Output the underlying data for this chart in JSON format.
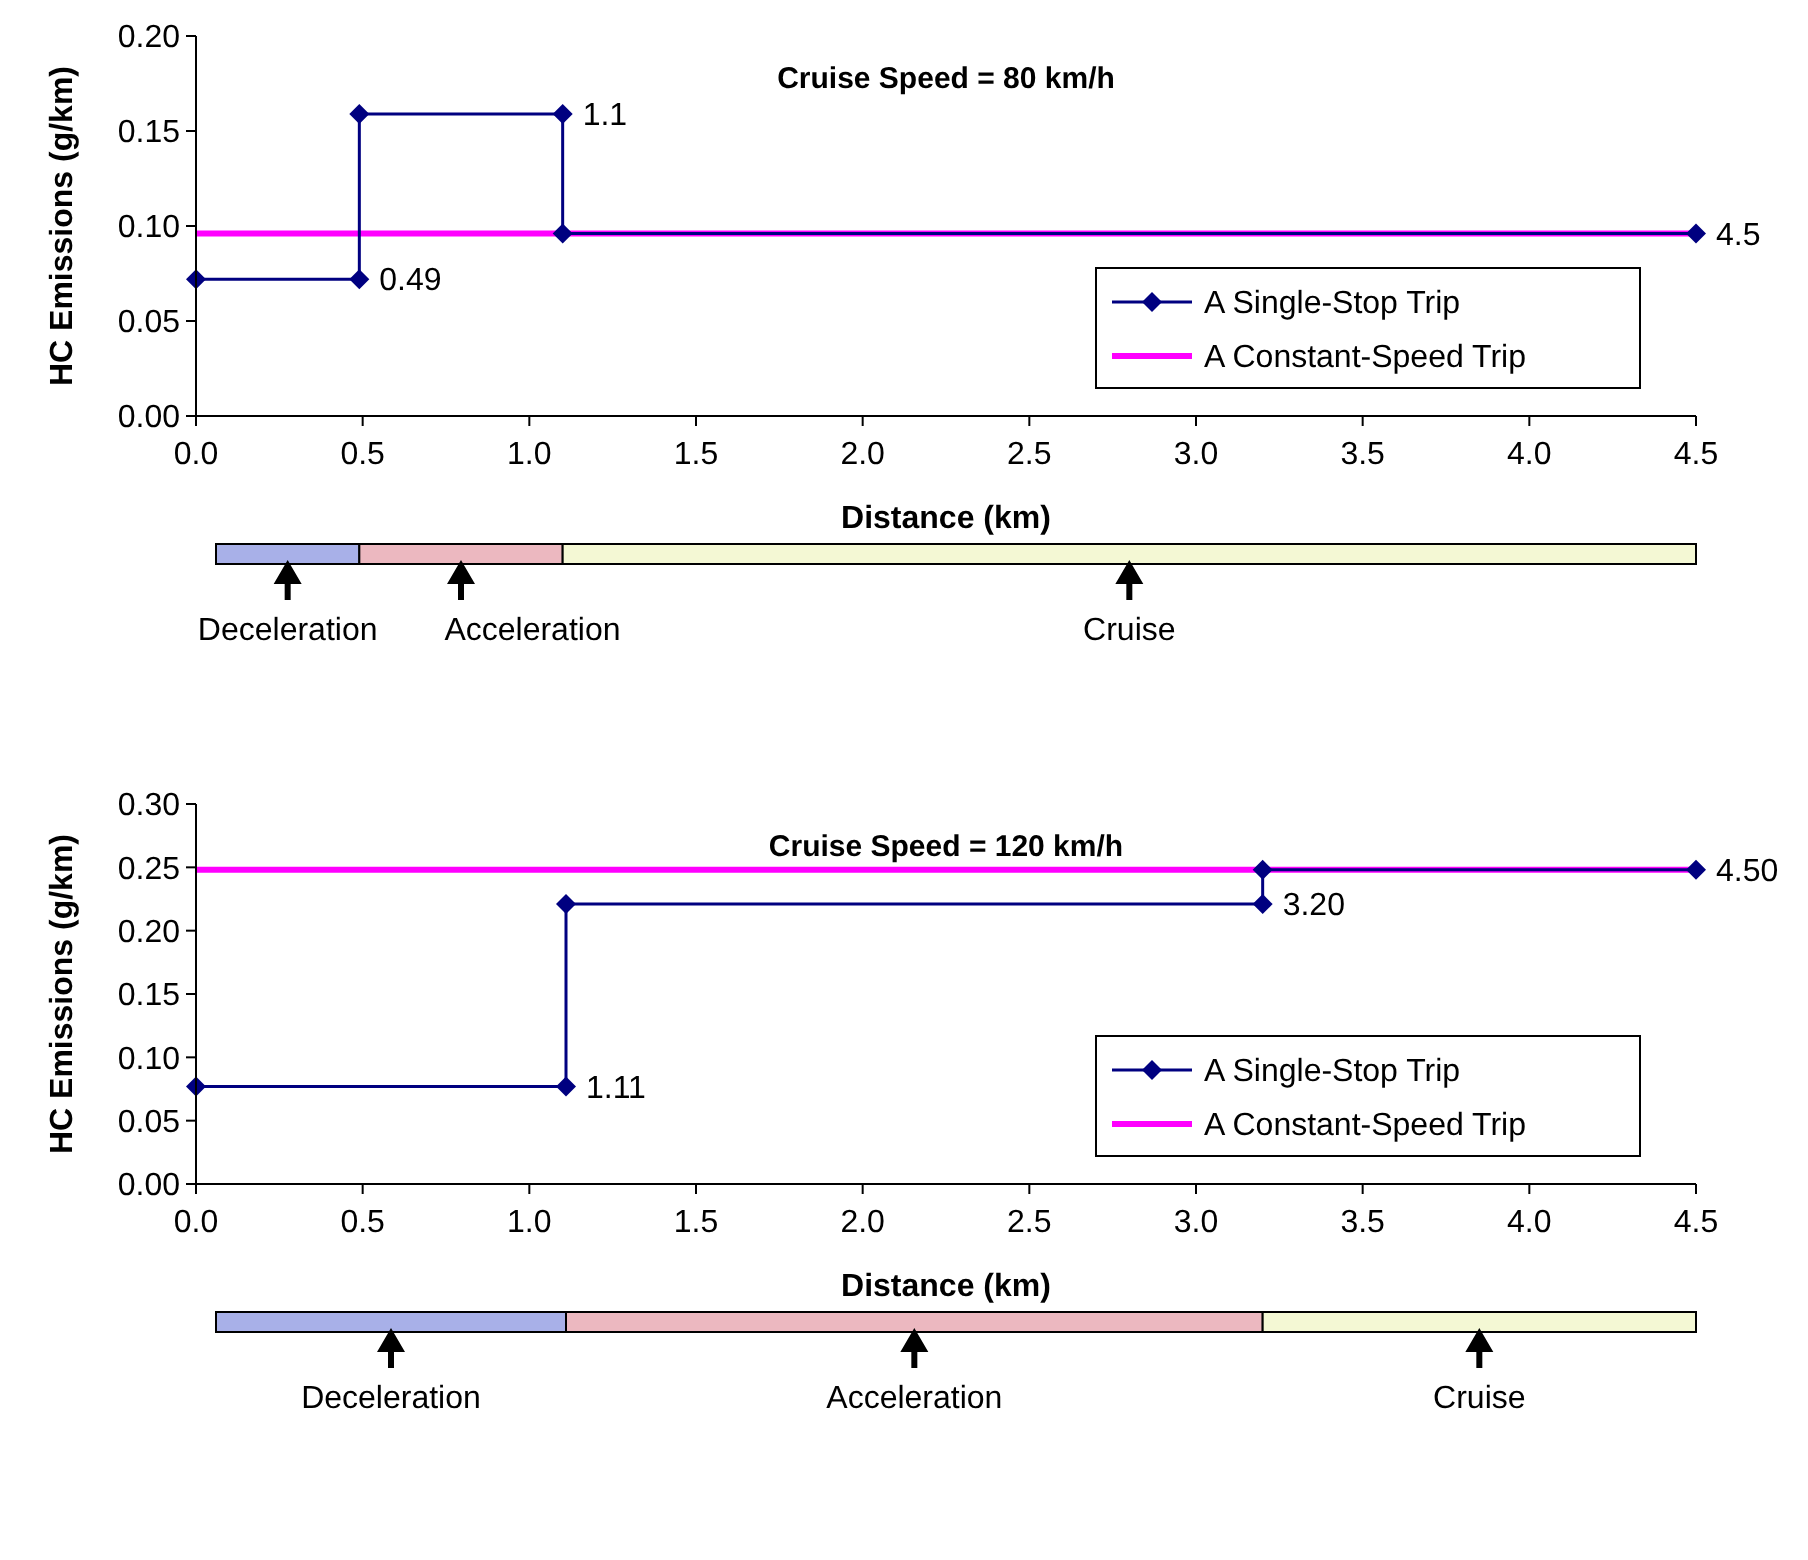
{
  "chart_data": [
    {
      "type": "line",
      "title": "Cruise Speed = 80 km/h",
      "xlabel": "Distance (km)",
      "ylabel": "HC Emissions (g/km)",
      "xlim": [
        0,
        4.5
      ],
      "xticks": [
        {
          "value": 0,
          "label": "0.0"
        },
        {
          "value": 0.5,
          "label": "0.5"
        },
        {
          "value": 1,
          "label": "1.0"
        },
        {
          "value": 1.5,
          "label": "1.5"
        },
        {
          "value": 2,
          "label": "2.0"
        },
        {
          "value": 2.5,
          "label": "2.5"
        },
        {
          "value": 3,
          "label": "3.0"
        },
        {
          "value": 3.5,
          "label": "3.5"
        },
        {
          "value": 4,
          "label": "4.0"
        },
        {
          "value": 4.5,
          "label": "4.5"
        }
      ],
      "ylim": [
        0,
        0.2
      ],
      "yticks": [
        {
          "value": 0,
          "label": "0.00"
        },
        {
          "value": 0.05,
          "label": "0.05"
        },
        {
          "value": 0.1,
          "label": "0.10"
        },
        {
          "value": 0.15,
          "label": "0.15"
        },
        {
          "value": 0.2,
          "label": "0.20"
        }
      ],
      "legend": "bottom right",
      "grid": false,
      "series": [
        {
          "name": "A Constant-Speed Trip",
          "color": "#ff00ff",
          "x": [
            0,
            4.5
          ],
          "values": [
            0.096,
            0.096
          ],
          "marker": "none"
        },
        {
          "name": "A Single-Stop Trip",
          "color": "#000080",
          "x": [
            0,
            0.49,
            0.49,
            1.1,
            1.1,
            4.5
          ],
          "values": [
            0.072,
            0.072,
            0.159,
            0.159,
            0.096,
            0.096
          ],
          "marker": "diamond"
        }
      ],
      "annotations": [
        {
          "text": "0.49",
          "x": 0.49,
          "y": 0.072
        },
        {
          "text": "1.1",
          "x": 1.1,
          "y": 0.159
        },
        {
          "text": "4.5",
          "x": 4.5,
          "y": 0.096
        },
        "Deceleration",
        "Acceleration",
        "Cruise"
      ]
    },
    {
      "type": "line",
      "title": "Cruise Speed = 120 km/h",
      "xlabel": "Distance (km)",
      "ylabel": "HC Emissions (g/km)",
      "xlim": [
        0,
        4.5
      ],
      "xticks": [
        {
          "value": 0,
          "label": "0.0"
        },
        {
          "value": 0.5,
          "label": "0.5"
        },
        {
          "value": 1,
          "label": "1.0"
        },
        {
          "value": 1.5,
          "label": "1.5"
        },
        {
          "value": 2,
          "label": "2.0"
        },
        {
          "value": 2.5,
          "label": "2.5"
        },
        {
          "value": 3,
          "label": "3.0"
        },
        {
          "value": 3.5,
          "label": "3.5"
        },
        {
          "value": 4,
          "label": "4.0"
        },
        {
          "value": 4.5,
          "label": "4.5"
        }
      ],
      "ylim": [
        0,
        0.3
      ],
      "yticks": [
        {
          "value": 0,
          "label": "0.00"
        },
        {
          "value": 0.05,
          "label": "0.05"
        },
        {
          "value": 0.1,
          "label": "0.10"
        },
        {
          "value": 0.15,
          "label": "0.15"
        },
        {
          "value": 0.2,
          "label": "0.20"
        },
        {
          "value": 0.25,
          "label": "0.25"
        },
        {
          "value": 0.3,
          "label": "0.30"
        }
      ],
      "legend": "bottom right",
      "grid": false,
      "series": [
        {
          "name": "A Constant-Speed Trip",
          "color": "#ff00ff",
          "x": [
            0,
            4.5
          ],
          "values": [
            0.248,
            0.248
          ],
          "marker": "none"
        },
        {
          "name": "A Single-Stop Trip",
          "color": "#000080",
          "x": [
            0,
            1.11,
            1.11,
            3.2,
            3.2,
            4.5
          ],
          "values": [
            0.077,
            0.077,
            0.221,
            0.221,
            0.248,
            0.248
          ],
          "marker": "diamond"
        }
      ],
      "annotations": [
        {
          "text": "1.11",
          "x": 1.11,
          "y": 0.077
        },
        {
          "text": "3.20",
          "x": 3.2,
          "y": 0.221
        },
        {
          "text": "4.50",
          "x": 4.5,
          "y": 0.248
        },
        "Deceleration",
        "Acceleration",
        "Cruise"
      ]
    }
  ]
}
